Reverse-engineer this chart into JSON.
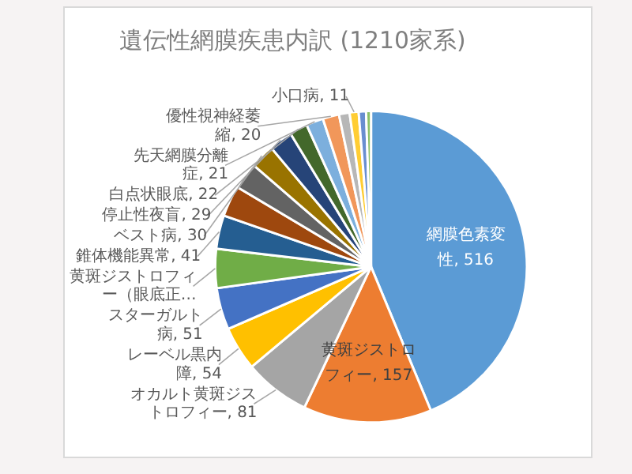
{
  "chart_data": {
    "type": "pie",
    "title": "遺伝性網膜疾患内訳 (1210家系)",
    "categories": [
      "網膜色素変性",
      "黄斑ジストロフィー",
      "オカルト黄斑ジストロフィー",
      "レーベル黒内障",
      "スターガルト病",
      "黄斑ジストロフィー（眼底正…",
      "錐体機能異常",
      null,
      null,
      "ベスト病",
      "停止性夜盲",
      "白点状眼底",
      "先天網膜分離症",
      "優性視神経萎縮",
      null,
      "小口病",
      null,
      null
    ],
    "values": [
      516,
      157,
      81,
      54,
      51,
      48,
      41,
      38,
      33,
      30,
      29,
      22,
      21,
      20,
      13,
      11,
      9,
      6
    ],
    "value_labels": [
      "516",
      "157",
      "81",
      "54",
      "51",
      null,
      "41",
      null,
      null,
      "30",
      "29",
      "22",
      "21",
      "20",
      null,
      "11",
      null,
      null
    ],
    "colors": [
      "#5b9bd5",
      "#ed7d31",
      "#a5a5a5",
      "#ffc000",
      "#4472c4",
      "#70ad47",
      "#255e91",
      "#9e480e",
      "#636363",
      "#997300",
      "#264478",
      "#43682b",
      "#7cafdd",
      "#f1975a",
      "#b7b7b7",
      "#ffcd33",
      "#698ed0",
      "#8cc168"
    ],
    "legend": false
  }
}
